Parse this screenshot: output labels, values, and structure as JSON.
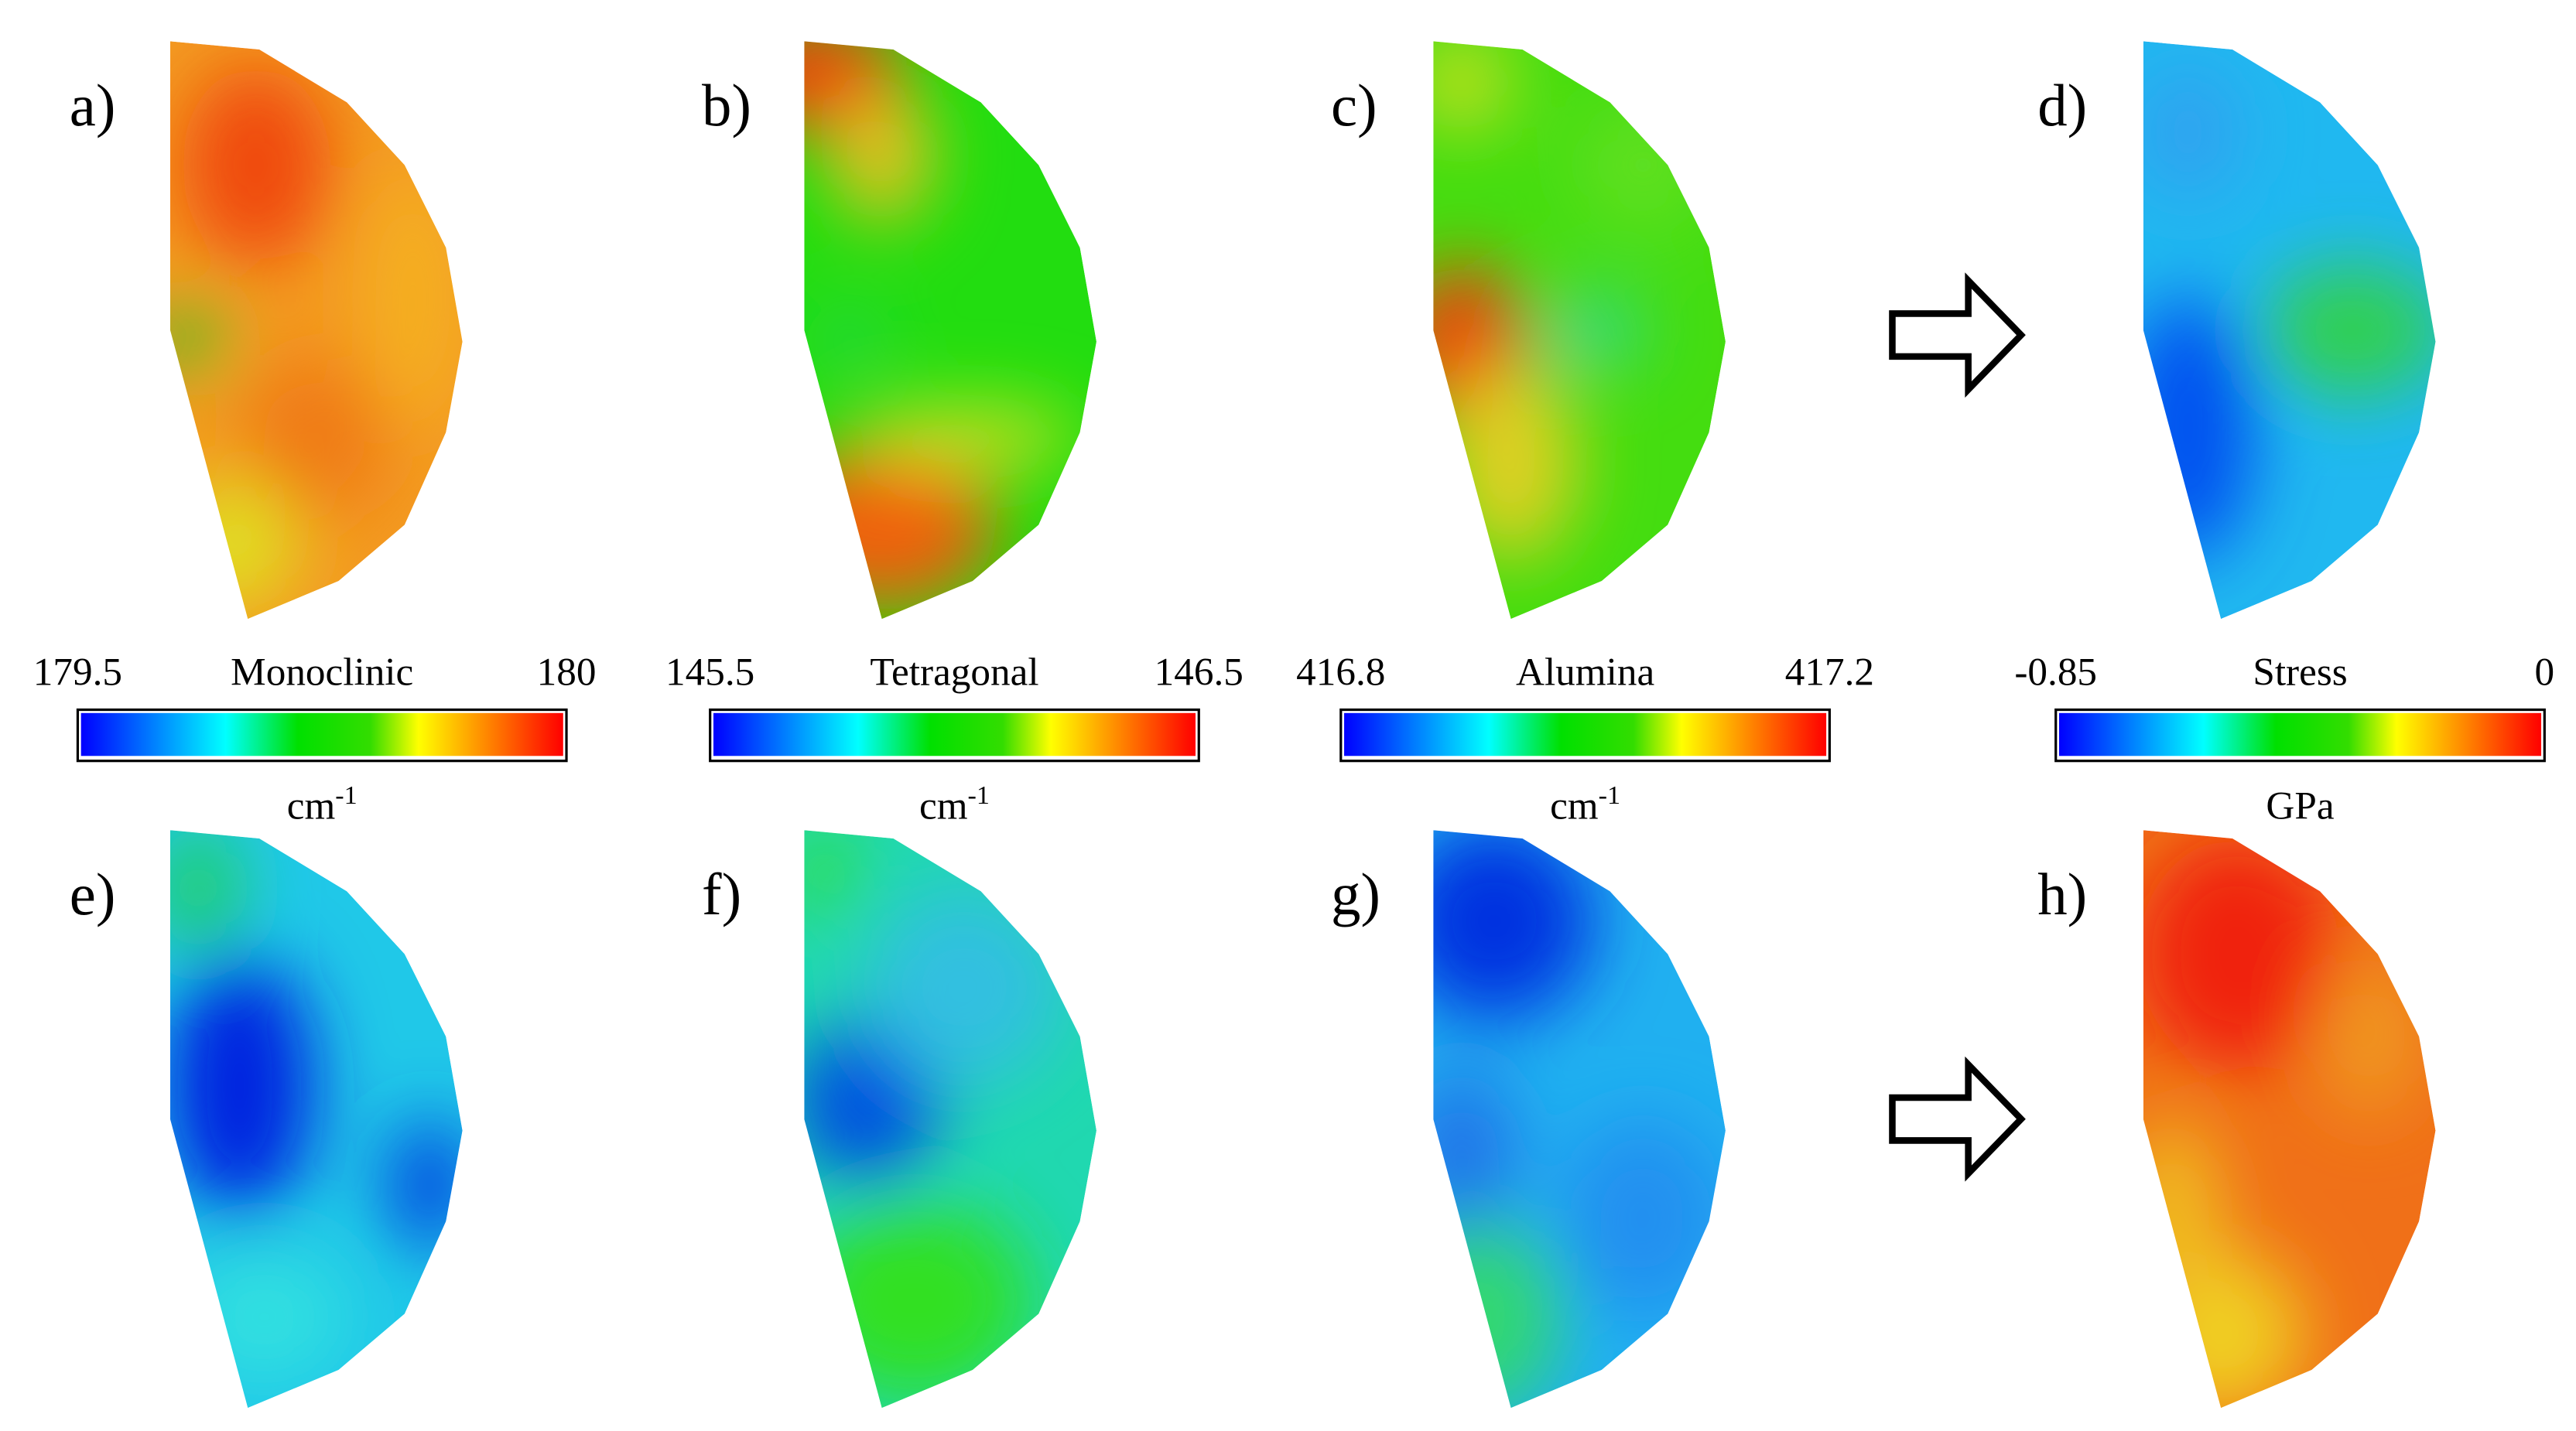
{
  "panels": [
    {
      "label": "a)"
    },
    {
      "label": "b)"
    },
    {
      "label": "c)"
    },
    {
      "label": "d)"
    },
    {
      "label": "e)"
    },
    {
      "label": "f)"
    },
    {
      "label": "g)"
    },
    {
      "label": "h)"
    }
  ],
  "colorbars": [
    {
      "min": "179.5",
      "title": "Monoclinic",
      "max": "180",
      "unit": {
        "base": "cm",
        "sup": "-1"
      }
    },
    {
      "min": "145.5",
      "title": "Tetragonal",
      "max": "146.5",
      "unit": {
        "base": "cm",
        "sup": "-1"
      }
    },
    {
      "min": "416.8",
      "title": "Alumina",
      "max": "417.2",
      "unit": {
        "base": "cm",
        "sup": "-1"
      }
    },
    {
      "min": "-0.85",
      "title": "Stress",
      "max": "0",
      "unit": {
        "base": "GPa"
      }
    }
  ]
}
